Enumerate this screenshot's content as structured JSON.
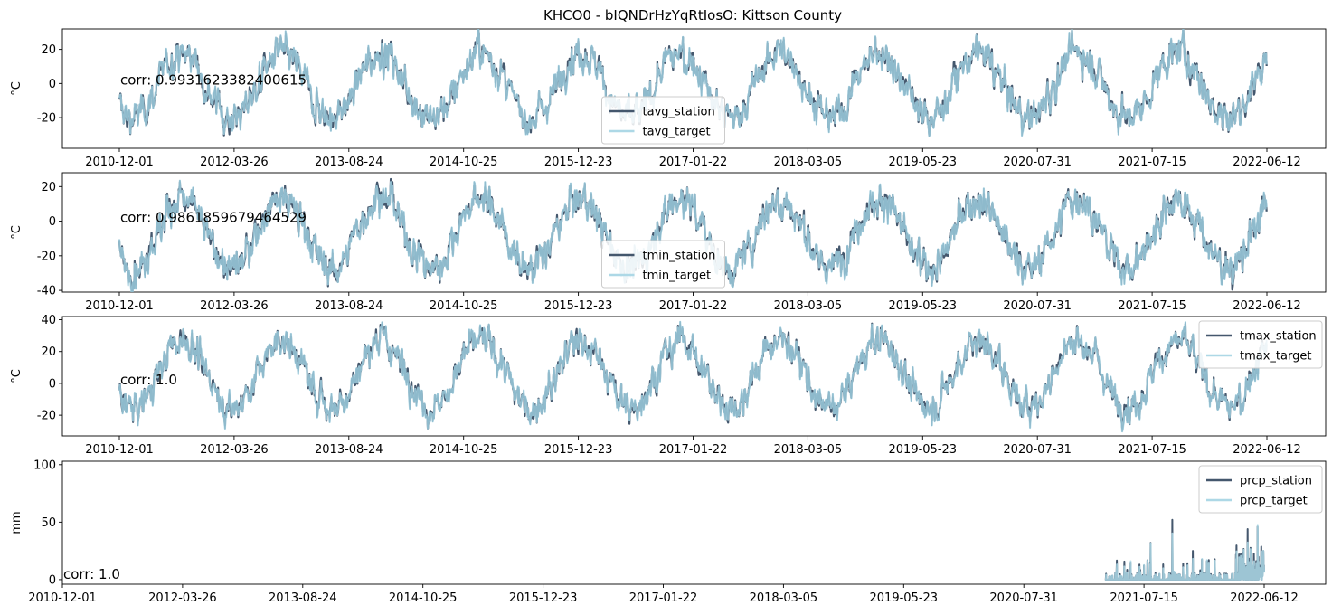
{
  "figure": {
    "title": "KHCO0 - bIQNDrHzYqRtIosO: Kittson County"
  },
  "colors": {
    "station": "#44576d",
    "target": "#add8e6"
  },
  "chart_data": [
    {
      "type": "line",
      "ylabel": "°C",
      "ylim": [
        -38,
        32
      ],
      "yticks": [
        20,
        0,
        -20
      ],
      "xtick_labels": [
        "2010-12-01",
        "2012-03-26",
        "2013-08-24",
        "2014-10-25",
        "2015-12-23",
        "2017-01-22",
        "2018-03-05",
        "2019-05-23",
        "2020-07-31",
        "2021-07-15",
        "2022-06-12"
      ],
      "x_range": [
        "2010-12-01",
        "2022-06-12"
      ],
      "annotation": "corr: 0.9931623382400615",
      "legend": {
        "position": "lower-center",
        "entries": [
          "tavg_station",
          "tavg_target"
        ]
      },
      "seasonal": {
        "mean": -1,
        "amplitude": 19,
        "noise": 6
      },
      "series": [
        {
          "name": "tavg_station",
          "color": "#44576d"
        },
        {
          "name": "tavg_target",
          "color": "#add8e6"
        }
      ]
    },
    {
      "type": "line",
      "ylabel": "°C",
      "ylim": [
        -41,
        28
      ],
      "yticks": [
        20,
        0,
        -20,
        -40
      ],
      "xtick_labels": [
        "2010-12-01",
        "2012-03-26",
        "2013-08-24",
        "2014-10-25",
        "2015-12-23",
        "2017-01-22",
        "2018-03-05",
        "2019-05-23",
        "2020-07-31",
        "2021-07-15",
        "2022-06-12"
      ],
      "x_range": [
        "2010-12-01",
        "2022-06-12"
      ],
      "annotation": "corr: 0.9861859679464529",
      "legend": {
        "position": "lower-center",
        "entries": [
          "tmin_station",
          "tmin_target"
        ]
      },
      "seasonal": {
        "mean": -7,
        "amplitude": 20,
        "noise": 6
      },
      "series": [
        {
          "name": "tmin_station",
          "color": "#44576d"
        },
        {
          "name": "tmin_target",
          "color": "#add8e6"
        }
      ]
    },
    {
      "type": "line",
      "ylabel": "°C",
      "ylim": [
        -33,
        42
      ],
      "yticks": [
        40,
        20,
        0,
        -20
      ],
      "xtick_labels": [
        "2010-12-01",
        "2012-03-26",
        "2013-08-24",
        "2014-10-25",
        "2015-12-23",
        "2017-01-22",
        "2018-03-05",
        "2019-05-23",
        "2020-07-31",
        "2021-07-15",
        "2022-06-12"
      ],
      "x_range": [
        "2010-12-01",
        "2022-06-12"
      ],
      "annotation": "corr: 1.0",
      "legend": {
        "position": "upper-right",
        "entries": [
          "tmax_station",
          "tmax_target"
        ]
      },
      "seasonal": {
        "mean": 6,
        "amplitude": 21,
        "noise": 6
      },
      "series": [
        {
          "name": "tmax_station",
          "color": "#44576d"
        },
        {
          "name": "tmax_target",
          "color": "#add8e6"
        }
      ]
    },
    {
      "type": "line",
      "ylabel": "mm",
      "ylim": [
        -4,
        103
      ],
      "yticks": [
        100,
        50,
        0
      ],
      "xtick_labels": [
        "2010-12-01",
        "2012-03-26",
        "2013-08-24",
        "2014-10-25",
        "2015-12-23",
        "2017-01-22",
        "2018-03-05",
        "2019-05-23",
        "2020-07-31",
        "2021-07-15",
        "2022-06-12"
      ],
      "x_range": [
        "2010-12-01",
        "2022-06-12"
      ],
      "data_start": "2020-12-01",
      "annotation": "corr: 1.0",
      "legend": {
        "position": "upper-right",
        "entries": [
          "prcp_station",
          "prcp_target"
        ]
      },
      "peaks": [
        {
          "x": "2021-05-10",
          "value": 32
        },
        {
          "x": "2021-07-25",
          "value": 52
        },
        {
          "x": "2021-10-05",
          "value": 25
        },
        {
          "x": "2022-04-15",
          "value": 44
        },
        {
          "x": "2022-05-20",
          "value": 46
        }
      ],
      "series": [
        {
          "name": "prcp_station",
          "color": "#44576d"
        },
        {
          "name": "prcp_target",
          "color": "#add8e6"
        }
      ]
    }
  ]
}
